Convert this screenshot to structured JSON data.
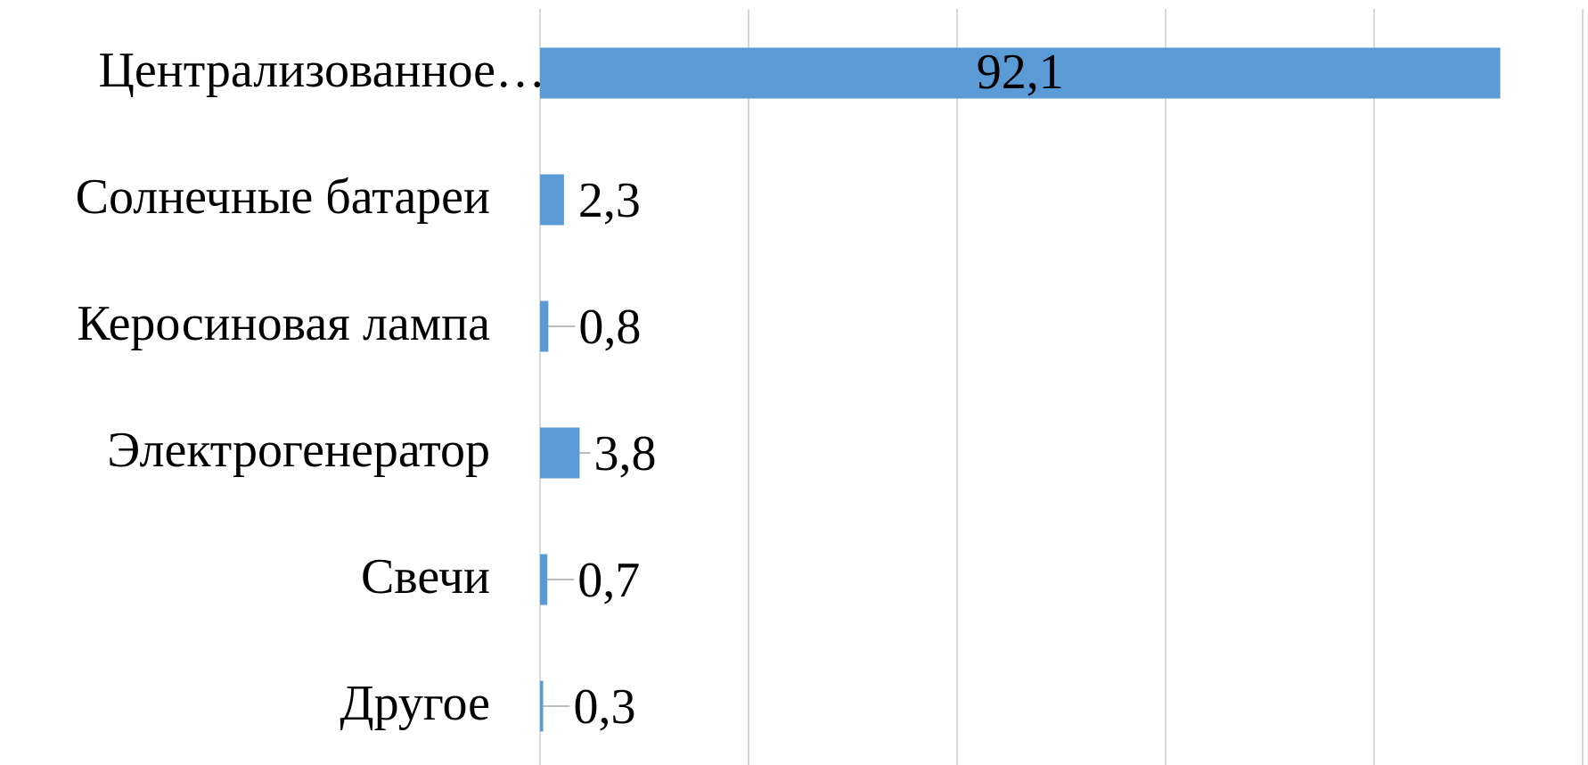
{
  "chart_data": {
    "type": "barh",
    "categories": [
      "Централизованное…",
      "Солнечные батареи",
      "Керосиновая лампа",
      "Электрогенератор",
      "Свечи",
      "Другое"
    ],
    "values": [
      92.1,
      2.3,
      0.8,
      3.8,
      0.7,
      0.3
    ],
    "value_labels": [
      "92,1",
      "2,3",
      "0,8",
      "3,8",
      "0,7",
      "0,3"
    ],
    "color": "#5b9bd5",
    "xlim": [
      0,
      100
    ],
    "xticks": [
      0,
      20,
      40,
      60,
      80,
      100
    ],
    "grid": true
  }
}
